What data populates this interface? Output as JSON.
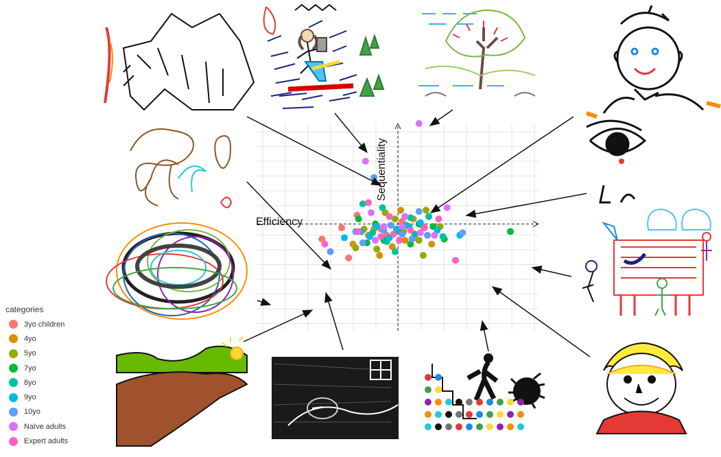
{
  "chart_data": {
    "type": "scatter",
    "title": "",
    "xlabel": "Efficiency",
    "ylabel": "Sequentiality",
    "xlim": [
      -10,
      10
    ],
    "ylim": [
      -8.5,
      8
    ],
    "grid": true,
    "legend": {
      "title": "categories",
      "position": "bottom-left"
    },
    "series": [
      {
        "name": "3yo  children",
        "color": "#f8766d",
        "points": [
          [
            -5.4,
            -1.2
          ],
          [
            -3.5,
            -2.7
          ],
          [
            -4.0,
            -0.3
          ],
          [
            -1.2,
            -0.4
          ],
          [
            0.3,
            0.2
          ],
          [
            1.2,
            -1.1
          ],
          [
            -0.8,
            -0.9
          ],
          [
            -2.9,
            0.7
          ]
        ]
      },
      {
        "name": "4yo",
        "color": "#d39200",
        "points": [
          [
            -3.2,
            -1.6
          ],
          [
            -1.7,
            -0.4
          ],
          [
            0.5,
            -1.3
          ],
          [
            1.8,
            -0.2
          ],
          [
            -2.1,
            -0.9
          ],
          [
            1.1,
            0.4
          ],
          [
            2.4,
            -1.6
          ],
          [
            -0.4,
            -1.8
          ],
          [
            -1.3,
            -2.5
          ],
          [
            0.2,
            1.1
          ]
        ]
      },
      {
        "name": "5yo",
        "color": "#93aa00",
        "points": [
          [
            -1.5,
            -2.0
          ],
          [
            1.8,
            -2.5
          ],
          [
            -0.2,
            0.4
          ],
          [
            -2.4,
            -0.4
          ],
          [
            0.4,
            -0.6
          ],
          [
            2.0,
            1.1
          ],
          [
            -3.0,
            -1.9
          ],
          [
            1.5,
            -1.3
          ],
          [
            -0.9,
            0.9
          ],
          [
            3.0,
            -0.2
          ]
        ]
      },
      {
        "name": "7yo",
        "color": "#00ba38",
        "points": [
          [
            8.0,
            -0.6
          ],
          [
            -2.8,
            0.4
          ],
          [
            -1.0,
            -1.3
          ],
          [
            0.1,
            -0.6
          ],
          [
            1.5,
            0.0
          ],
          [
            2.5,
            -0.2
          ],
          [
            -2.2,
            -1.5
          ],
          [
            0.9,
            -1.6
          ],
          [
            -1.6,
            0.0
          ],
          [
            3.3,
            -1.2
          ]
        ]
      },
      {
        "name": "8yo",
        "color": "#00c19f",
        "points": [
          [
            -2.5,
            1.6
          ],
          [
            -0.8,
            -1.4
          ],
          [
            0.6,
            -0.1
          ],
          [
            -1.8,
            -0.7
          ],
          [
            2.2,
            0.6
          ],
          [
            -0.2,
            -2.2
          ],
          [
            1.2,
            -0.8
          ],
          [
            3.2,
            -1.0
          ],
          [
            -1.1,
            1.3
          ],
          [
            0.9,
            0.5
          ]
        ]
      },
      {
        "name": "9yo",
        "color": "#00b9e3",
        "points": [
          [
            -3.8,
            -1.1
          ],
          [
            -1.5,
            -0.2
          ],
          [
            -0.6,
            -1.1
          ],
          [
            0.8,
            -0.2
          ],
          [
            -2.0,
            -1.0
          ],
          [
            1.6,
            0.1
          ],
          [
            2.8,
            -0.5
          ],
          [
            -0.1,
            -0.4
          ],
          [
            -2.6,
            -0.6
          ],
          [
            4.4,
            -0.9
          ]
        ]
      },
      {
        "name": "10yo",
        "color": "#619cff",
        "points": [
          [
            -1.7,
            3.7
          ],
          [
            1.5,
            1.0
          ],
          [
            -2.5,
            -1.5
          ],
          [
            -0.5,
            -0.1
          ],
          [
            -4.8,
            -2.2
          ],
          [
            0.3,
            -0.8
          ],
          [
            2.1,
            -0.9
          ],
          [
            -3.0,
            -0.6
          ],
          [
            1.0,
            -1.2
          ],
          [
            -1.0,
            -0.5
          ],
          [
            4.6,
            -0.7
          ]
        ]
      },
      {
        "name": "Naïve adults",
        "color": "#db72fb",
        "points": [
          [
            1.5,
            8.0
          ],
          [
            -2.3,
            5.0
          ],
          [
            3.5,
            1.3
          ],
          [
            -1.0,
            -0.2
          ],
          [
            0.3,
            -0.2
          ],
          [
            1.6,
            -0.7
          ],
          [
            -1.9,
            0.9
          ],
          [
            0.5,
            0.6
          ],
          [
            2.6,
            -0.9
          ],
          [
            -1.6,
            -1.3
          ]
        ]
      },
      {
        "name": "Expert adults",
        "color": "#ff61c3",
        "points": [
          [
            -2.1,
            1.7
          ],
          [
            -5.2,
            -1.6
          ],
          [
            4.1,
            -2.9
          ],
          [
            -1.2,
            -1.0
          ],
          [
            0.9,
            -0.5
          ],
          [
            -0.3,
            -0.8
          ],
          [
            1.9,
            -0.3
          ],
          [
            -2.8,
            -0.6
          ],
          [
            0.1,
            -1.3
          ],
          [
            2.9,
            0.4
          ],
          [
            -0.6,
            0.6
          ]
        ]
      }
    ]
  }
}
